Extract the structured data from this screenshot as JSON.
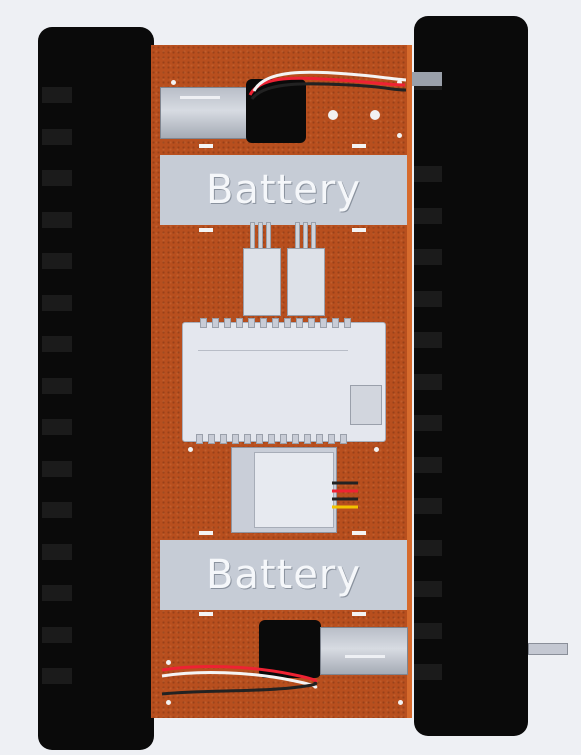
{
  "labels": {
    "battery_top": "Battery",
    "battery_bottom": "Battery"
  },
  "colors": {
    "board": "#b84f1e",
    "track": "#0a0a0a",
    "battery": "#c6ccd6",
    "component": "#e4e7ee",
    "background": "#eef0f4"
  },
  "components": [
    "left-track",
    "right-track",
    "chassis-board",
    "top-motor",
    "bottom-motor",
    "battery-top",
    "battery-bottom",
    "motor-drivers",
    "plc-controller",
    "power-module"
  ]
}
